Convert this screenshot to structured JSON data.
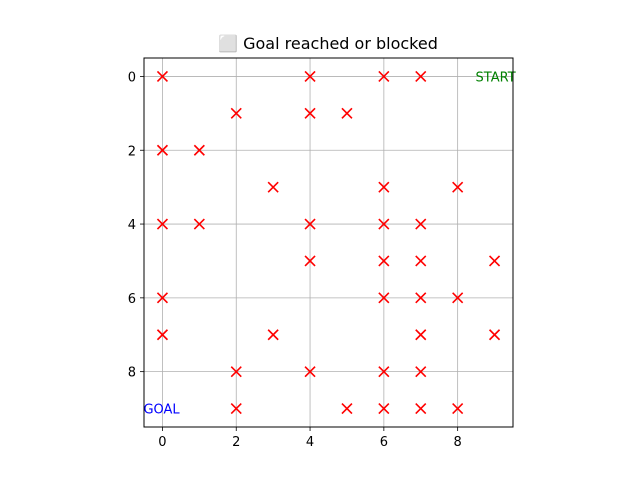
{
  "chart_data": {
    "type": "scatter",
    "title": "⬜ Goal reached or blocked",
    "xlim": [
      -0.5,
      9.5
    ],
    "ylim": [
      9.5,
      -0.5
    ],
    "y_inverted": true,
    "grid": true,
    "xticks": [
      0,
      2,
      4,
      6,
      8
    ],
    "yticks": [
      0,
      2,
      4,
      6,
      8
    ],
    "marker": "x",
    "marker_color": "#ff0000",
    "obstacles": [
      {
        "x": 0,
        "y": 0
      },
      {
        "x": 4,
        "y": 0
      },
      {
        "x": 6,
        "y": 0
      },
      {
        "x": 7,
        "y": 0
      },
      {
        "x": 2,
        "y": 1
      },
      {
        "x": 4,
        "y": 1
      },
      {
        "x": 5,
        "y": 1
      },
      {
        "x": 0,
        "y": 2
      },
      {
        "x": 1,
        "y": 2
      },
      {
        "x": 3,
        "y": 3
      },
      {
        "x": 6,
        "y": 3
      },
      {
        "x": 8,
        "y": 3
      },
      {
        "x": 0,
        "y": 4
      },
      {
        "x": 1,
        "y": 4
      },
      {
        "x": 4,
        "y": 4
      },
      {
        "x": 6,
        "y": 4
      },
      {
        "x": 7,
        "y": 4
      },
      {
        "x": 4,
        "y": 5
      },
      {
        "x": 6,
        "y": 5
      },
      {
        "x": 7,
        "y": 5
      },
      {
        "x": 9,
        "y": 5
      },
      {
        "x": 0,
        "y": 6
      },
      {
        "x": 6,
        "y": 6
      },
      {
        "x": 7,
        "y": 6
      },
      {
        "x": 8,
        "y": 6
      },
      {
        "x": 0,
        "y": 7
      },
      {
        "x": 3,
        "y": 7
      },
      {
        "x": 7,
        "y": 7
      },
      {
        "x": 9,
        "y": 7
      },
      {
        "x": 2,
        "y": 8
      },
      {
        "x": 4,
        "y": 8
      },
      {
        "x": 6,
        "y": 8
      },
      {
        "x": 7,
        "y": 8
      },
      {
        "x": 2,
        "y": 9
      },
      {
        "x": 5,
        "y": 9
      },
      {
        "x": 6,
        "y": 9
      },
      {
        "x": 7,
        "y": 9
      },
      {
        "x": 8,
        "y": 9
      }
    ],
    "annotations": [
      {
        "text": "START",
        "x": 9,
        "y": 0,
        "color": "#008000"
      },
      {
        "text": "GOAL",
        "x": 0,
        "y": 9,
        "color": "#0000ff"
      }
    ]
  }
}
